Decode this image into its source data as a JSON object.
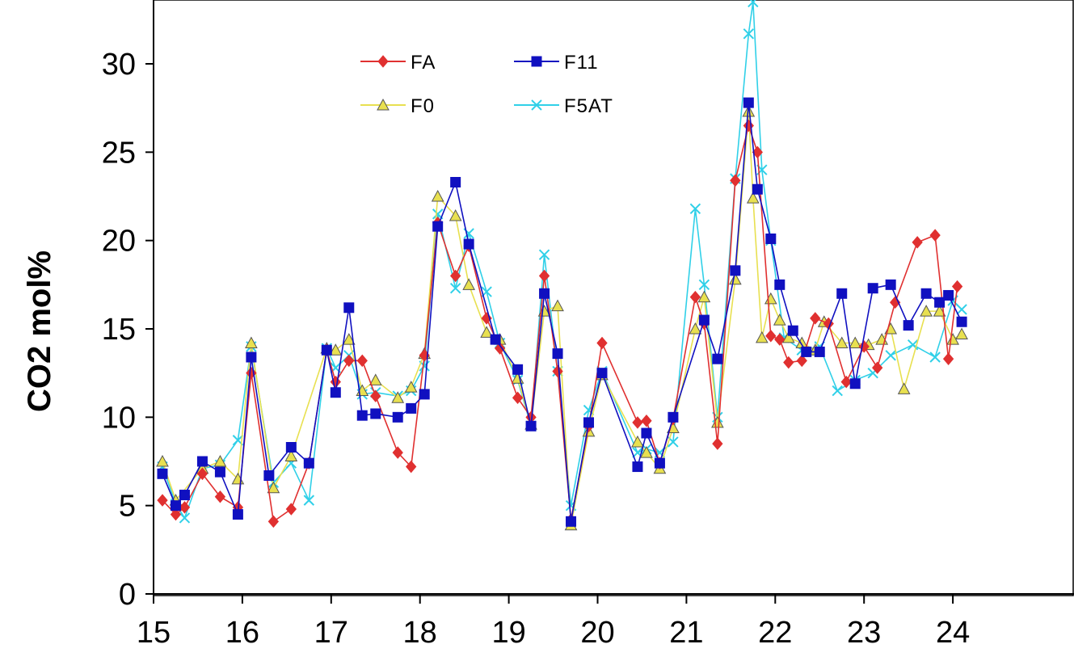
{
  "chart_data": {
    "type": "line",
    "xlabel": "",
    "ylabel": "CO2 mol%",
    "xlim": [
      15,
      25
    ],
    "ylim": [
      0,
      33
    ],
    "x_ticks": [
      15,
      16,
      17,
      18,
      19,
      20,
      21,
      22,
      23,
      24
    ],
    "y_ticks": [
      0,
      5,
      10,
      15,
      20,
      25,
      30
    ],
    "grid": false,
    "legend_position": "top-left",
    "series": [
      {
        "name": "FA",
        "color": "#e03030",
        "marker": "diamond",
        "x": [
          15.1,
          15.25,
          15.35,
          15.55,
          15.75,
          15.95,
          16.1,
          16.35,
          16.55,
          16.75,
          16.95,
          17.05,
          17.2,
          17.35,
          17.5,
          17.75,
          17.9,
          18.05,
          18.2,
          18.4,
          18.55,
          18.75,
          18.9,
          19.1,
          19.25,
          19.4,
          19.55,
          19.7,
          19.9,
          20.05,
          20.45,
          20.55,
          20.7,
          20.85,
          21.1,
          21.2,
          21.35,
          21.55,
          21.7,
          21.8,
          21.95,
          22.05,
          22.15,
          22.3,
          22.45,
          22.6,
          22.8,
          23.0,
          23.15,
          23.35,
          23.6,
          23.8,
          23.95,
          24.05
        ],
        "y": [
          5.3,
          4.5,
          4.9,
          6.8,
          5.5,
          4.9,
          12.5,
          4.1,
          4.8,
          7.4,
          13.8,
          12.0,
          13.2,
          13.2,
          11.2,
          8.0,
          7.2,
          13.5,
          21.0,
          18.0,
          19.7,
          15.6,
          13.9,
          11.1,
          10.0,
          18.0,
          12.6,
          4.2,
          9.5,
          14.2,
          9.7,
          9.8,
          7.4,
          9.9,
          16.8,
          15.3,
          8.5,
          23.4,
          26.5,
          25.0,
          14.6,
          14.4,
          13.1,
          13.2,
          15.6,
          15.3,
          12.0,
          14.0,
          12.8,
          16.5,
          19.9,
          20.3,
          13.3,
          17.4
        ]
      },
      {
        "name": "F11",
        "color": "#1010c0",
        "marker": "square",
        "x": [
          15.1,
          15.25,
          15.35,
          15.55,
          15.75,
          15.95,
          16.1,
          16.3,
          16.55,
          16.75,
          16.95,
          17.05,
          17.2,
          17.35,
          17.5,
          17.75,
          17.9,
          18.05,
          18.2,
          18.4,
          18.55,
          18.85,
          19.1,
          19.25,
          19.4,
          19.55,
          19.7,
          19.9,
          20.05,
          20.45,
          20.55,
          20.7,
          20.85,
          21.2,
          21.35,
          21.55,
          21.7,
          21.8,
          21.95,
          22.05,
          22.2,
          22.35,
          22.5,
          22.75,
          22.9,
          23.1,
          23.3,
          23.5,
          23.7,
          23.85,
          23.95,
          24.1
        ],
        "y": [
          6.8,
          5.0,
          5.6,
          7.5,
          6.9,
          4.5,
          13.4,
          6.7,
          8.3,
          7.4,
          13.8,
          11.4,
          16.2,
          10.1,
          10.2,
          10.0,
          10.5,
          11.3,
          20.8,
          23.3,
          19.8,
          14.4,
          12.7,
          9.5,
          17.0,
          13.6,
          4.1,
          9.7,
          12.5,
          7.2,
          9.1,
          7.4,
          10.0,
          15.5,
          13.3,
          18.3,
          27.8,
          22.9,
          20.1,
          17.5,
          14.9,
          13.7,
          13.7,
          17.0,
          11.9,
          17.3,
          17.5,
          15.2,
          17.0,
          16.5,
          16.9,
          15.4
        ]
      },
      {
        "name": "F0",
        "color": "#e8e050",
        "marker": "triangle",
        "x": [
          15.1,
          15.25,
          15.55,
          15.75,
          15.95,
          16.1,
          16.35,
          16.55,
          16.95,
          17.05,
          17.2,
          17.35,
          17.5,
          17.75,
          17.9,
          18.05,
          18.2,
          18.4,
          18.55,
          18.75,
          18.9,
          19.1,
          19.25,
          19.4,
          19.55,
          19.7,
          19.9,
          20.05,
          20.45,
          20.55,
          20.7,
          20.85,
          21.1,
          21.2,
          21.35,
          21.55,
          21.7,
          21.75,
          21.85,
          21.95,
          22.05,
          22.15,
          22.3,
          22.45,
          22.55,
          22.75,
          22.9,
          23.05,
          23.2,
          23.3,
          23.45,
          23.7,
          23.85,
          24.0,
          24.1
        ],
        "y": [
          7.5,
          5.3,
          7.1,
          7.5,
          6.5,
          14.2,
          6.0,
          7.8,
          13.9,
          13.8,
          14.4,
          11.5,
          12.1,
          11.1,
          11.7,
          13.6,
          22.5,
          21.4,
          17.5,
          14.8,
          14.4,
          12.2,
          9.6,
          16.0,
          16.3,
          3.9,
          9.2,
          12.4,
          8.6,
          8.0,
          7.1,
          9.4,
          15.0,
          16.8,
          9.7,
          17.8,
          27.3,
          22.4,
          14.5,
          16.7,
          15.5,
          14.5,
          14.2,
          13.8,
          15.4,
          14.2,
          14.2,
          14.1,
          14.4,
          15.0,
          11.6,
          16.0,
          16.0,
          14.4,
          14.7
        ]
      },
      {
        "name": "F5AT",
        "color": "#30d0e8",
        "marker": "x",
        "x": [
          15.1,
          15.25,
          15.35,
          15.55,
          15.75,
          15.95,
          16.1,
          16.35,
          16.55,
          16.75,
          16.95,
          17.05,
          17.2,
          17.35,
          17.5,
          17.75,
          17.9,
          18.05,
          18.2,
          18.4,
          18.55,
          18.75,
          18.9,
          19.1,
          19.25,
          19.4,
          19.55,
          19.7,
          19.9,
          20.05,
          20.45,
          20.55,
          20.7,
          20.85,
          21.1,
          21.2,
          21.35,
          21.55,
          21.7,
          21.75,
          21.85,
          21.95,
          22.1,
          22.3,
          22.5,
          22.7,
          22.9,
          23.1,
          23.3,
          23.55,
          23.8,
          24.0,
          24.1
        ],
        "y": [
          7.2,
          5.1,
          4.3,
          7.1,
          7.3,
          8.7,
          14.0,
          6.3,
          7.4,
          5.3,
          13.9,
          12.8,
          13.5,
          11.3,
          11.4,
          11.2,
          11.5,
          12.9,
          21.5,
          17.3,
          20.4,
          17.1,
          14.2,
          12.1,
          9.5,
          19.2,
          12.6,
          5.0,
          10.4,
          12.6,
          8.0,
          8.2,
          8.0,
          8.6,
          21.8,
          17.5,
          10.0,
          23.5,
          31.7,
          33.5,
          24.0,
          20.0,
          14.5,
          13.8,
          14.0,
          11.5,
          12.1,
          12.5,
          13.5,
          14.1,
          13.4,
          16.6,
          16.1
        ]
      }
    ]
  }
}
